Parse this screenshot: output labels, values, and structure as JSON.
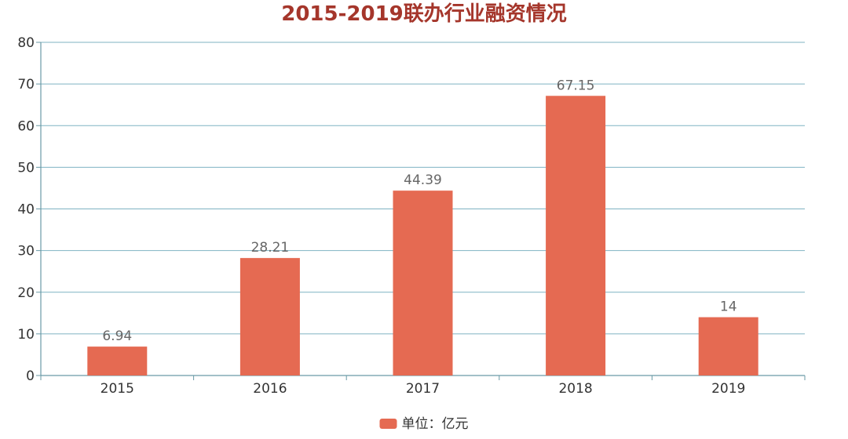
{
  "colors": {
    "title": "#a5362b",
    "bar": "#e56a52",
    "gridline": "#7fb3c2",
    "axis": "#6a9aa6",
    "tick_text": "#333333",
    "data_label": "#666666"
  },
  "chart_data": {
    "type": "bar",
    "title": "2015-2019联办行业融资情况",
    "categories": [
      "2015",
      "2016",
      "2017",
      "2018",
      "2019"
    ],
    "series": [
      {
        "name": "单位：亿元",
        "values": [
          6.94,
          28.21,
          44.39,
          67.15,
          14
        ],
        "labels": [
          "6.94",
          "28.21",
          "44.39",
          "67.15",
          "14"
        ]
      }
    ],
    "ylim": [
      0,
      80
    ],
    "yticks": [
      "0",
      "10",
      "20",
      "30",
      "40",
      "50",
      "60",
      "70",
      "80"
    ],
    "grid": true,
    "legend_position": "bottom-center",
    "xlabel": "",
    "ylabel": ""
  }
}
